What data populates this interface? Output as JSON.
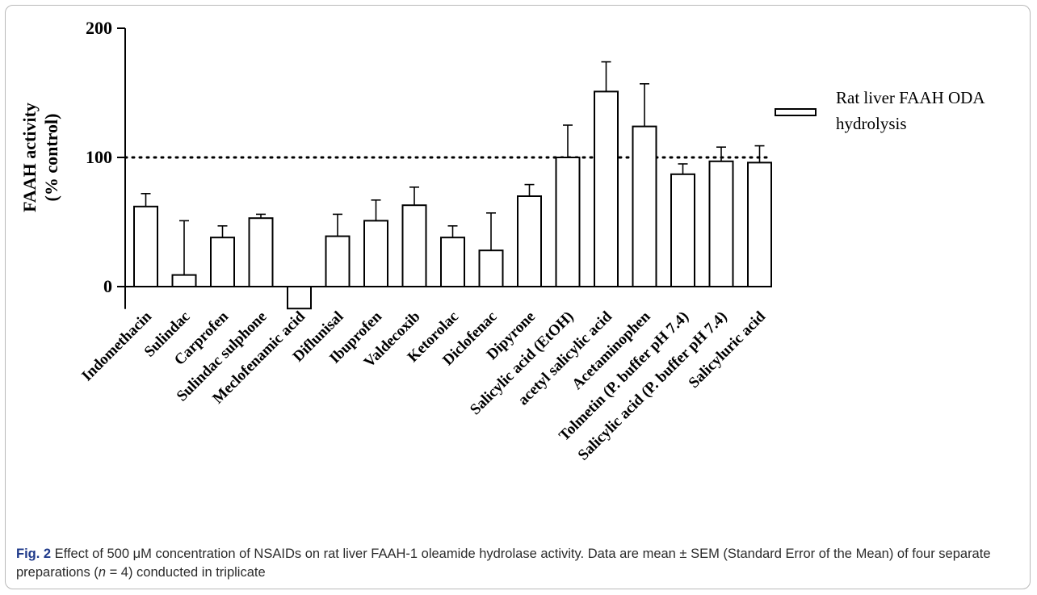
{
  "chart_data": {
    "type": "bar",
    "ylabel_line1": "FAAH activity",
    "ylabel_line2": "(% control)",
    "ylim": [
      -17,
      200
    ],
    "yticks": [
      0,
      100,
      200
    ],
    "reference_line": 100,
    "categories": [
      "Indomethacin",
      "Sulindac",
      "Carprofen",
      "Sulindac sulphone",
      "Meclofenamic acid",
      "Diflunisal",
      "Ibuprofen",
      "Valdecoxib",
      "Ketorolac",
      "Diclofenac",
      "Dipyrone",
      "Salicylic acid (EtOH)",
      "acetyl salicylic acid",
      "Acetaminophen",
      "Tolmetin (P. buffer pH 7.4)",
      "Salicylic acid (P. buffer pH 7.4)",
      "Salicyluric acid"
    ],
    "series": [
      {
        "name": "Rat liver FAAH ODA hydrolysis",
        "values": [
          62,
          9,
          38,
          53,
          -17,
          39,
          51,
          63,
          38,
          28,
          70,
          100,
          151,
          124,
          87,
          97,
          96
        ],
        "errors": [
          10,
          42,
          9,
          3,
          0,
          17,
          16,
          14,
          9,
          29,
          9,
          25,
          23,
          33,
          8,
          11,
          13
        ]
      }
    ],
    "legend": {
      "line1": "Rat liver FAAH ODA",
      "line2": "hydrolysis",
      "position": "right"
    },
    "grid": false
  },
  "caption": {
    "label": "Fig. 2",
    "text_a": " Effect of 500 μM concentration of NSAIDs on rat liver FAAH-1 oleamide hydrolase activity. Data are mean ± SEM (Standard Error of the Mean) of four separate preparations (",
    "n": "n",
    "text_b": " = 4) conducted in triplicate"
  }
}
